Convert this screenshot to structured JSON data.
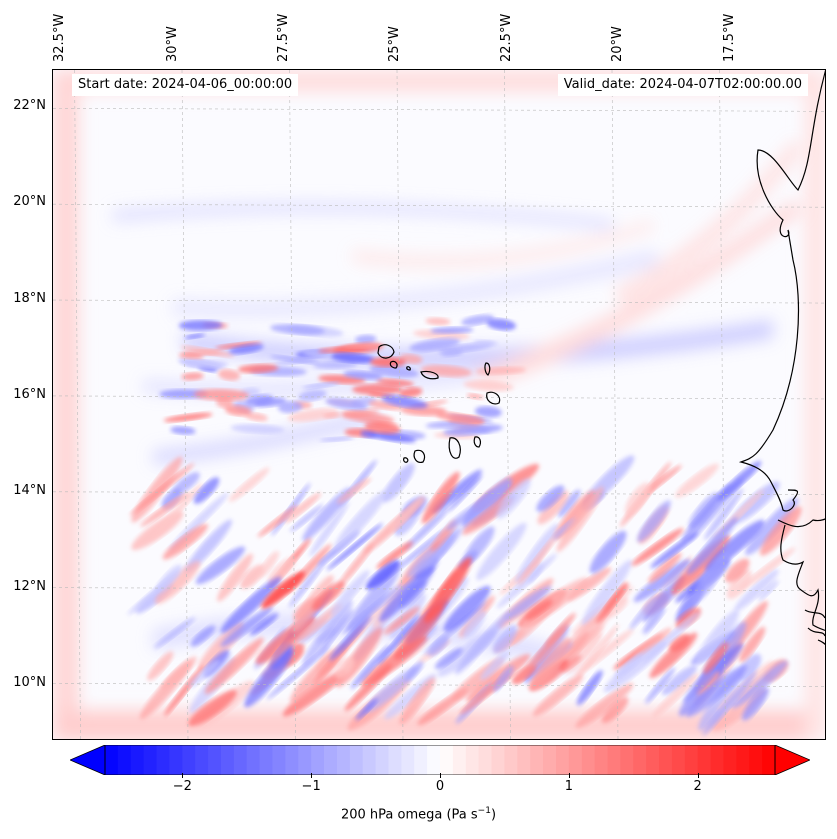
{
  "map": {
    "projection": "lat-lon",
    "extent": {
      "lon_west": -33.0,
      "lon_east": -15.0,
      "lat_south": 8.8,
      "lat_north": 22.8
    },
    "gridlines": true,
    "lon_labels": [
      "32.5°W",
      "30°W",
      "27.5°W",
      "25°W",
      "22.5°W",
      "20°W",
      "17.5°W"
    ],
    "lon_values": [
      -32.5,
      -30,
      -27.5,
      -25,
      -22.5,
      -20,
      -17.5
    ],
    "lat_labels": [
      "22°N",
      "20°N",
      "18°N",
      "16°N",
      "14°N",
      "12°N",
      "10°N"
    ],
    "lat_values": [
      22,
      20,
      18,
      16,
      14,
      12,
      10
    ],
    "start_date": "Start date: 2024-04-06_00:00:00",
    "valid_date": "Valid_date: 2024-04-07T02:00:00.00",
    "field": "omega",
    "colormap": "bwr",
    "colors": {
      "negative": "#0000ff",
      "zero": "#ffffff",
      "positive": "#ff0000",
      "coast": "#000000"
    }
  },
  "colorbar": {
    "min": -2.6,
    "max": 2.6,
    "ticks": [
      "−2",
      "−1",
      "0",
      "1",
      "2"
    ],
    "tick_values": [
      -2,
      -1,
      0,
      1,
      2
    ],
    "label_prefix": "200 hPa omega (Pa s",
    "label_exp": "−1",
    "label_suffix": ")",
    "extend": "both"
  }
}
